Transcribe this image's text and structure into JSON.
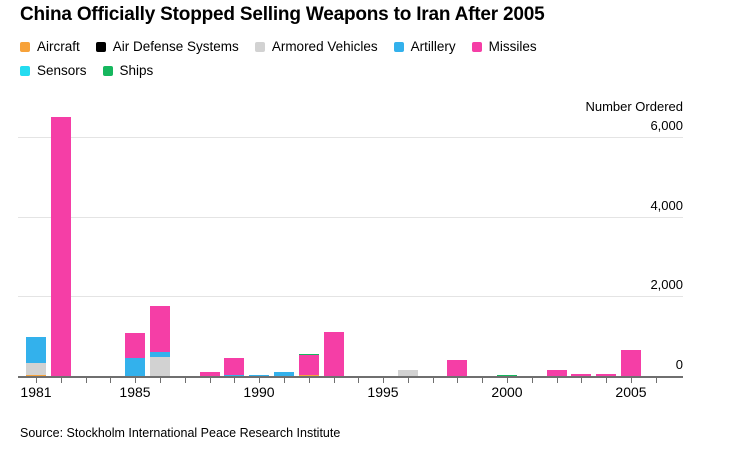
{
  "title": "China Officially Stopped Selling Weapons to Iran After 2005",
  "legend": {
    "items": [
      {
        "label": "Aircraft",
        "color": "#f7a23a"
      },
      {
        "label": "Air Defense Systems",
        "color": "#000000"
      },
      {
        "label": "Armored Vehicles",
        "color": "#d2d2d2"
      },
      {
        "label": "Artillery",
        "color": "#33b1ec"
      },
      {
        "label": "Missiles",
        "color": "#f53ea6"
      },
      {
        "label": "Sensors",
        "color": "#24dcf0"
      },
      {
        "label": "Ships",
        "color": "#16b75e"
      }
    ]
  },
  "y_axis": {
    "title": "Number Ordered",
    "ticks": [
      {
        "label": "6,000",
        "value": 6000
      },
      {
        "label": "4,000",
        "value": 4000
      },
      {
        "label": "2,000",
        "value": 2000
      },
      {
        "label": "0",
        "value": 0
      }
    ]
  },
  "x_axis": {
    "labeled_years": [
      "1981",
      "1985",
      "1990",
      "1995",
      "2000",
      "2005"
    ]
  },
  "source": "Source: Stockholm International Peace Research Institute",
  "chart_data": {
    "type": "bar",
    "stacked": true,
    "title": "China Officially Stopped Selling Weapons to Iran After 2005",
    "xlabel": "",
    "ylabel": "Number Ordered",
    "ylim": [
      0,
      6600
    ],
    "grid": "horizontal",
    "legend_position": "top",
    "categories": [
      1981,
      1982,
      1983,
      1984,
      1985,
      1986,
      1987,
      1988,
      1989,
      1990,
      1991,
      1992,
      1993,
      1994,
      1995,
      1996,
      1997,
      1998,
      1999,
      2000,
      2001,
      2002,
      2003,
      2004,
      2005,
      2006
    ],
    "series": [
      {
        "name": "Aircraft",
        "color": "#f7a23a",
        "values": [
          20,
          0,
          0,
          0,
          0,
          0,
          0,
          0,
          0,
          0,
          0,
          20,
          0,
          0,
          0,
          0,
          0,
          0,
          0,
          0,
          0,
          0,
          0,
          0,
          0,
          0
        ]
      },
      {
        "name": "Air Defense Systems",
        "color": "#000000",
        "values": [
          0,
          0,
          0,
          0,
          0,
          0,
          0,
          0,
          0,
          0,
          0,
          0,
          0,
          0,
          0,
          0,
          0,
          0,
          0,
          0,
          0,
          0,
          0,
          0,
          0,
          0
        ]
      },
      {
        "name": "Armored Vehicles",
        "color": "#d2d2d2",
        "values": [
          300,
          0,
          0,
          0,
          0,
          480,
          0,
          0,
          0,
          0,
          0,
          0,
          0,
          0,
          0,
          150,
          0,
          0,
          0,
          0,
          0,
          0,
          0,
          0,
          0,
          0
        ]
      },
      {
        "name": "Artillery",
        "color": "#33b1ec",
        "values": [
          650,
          0,
          0,
          0,
          440,
          130,
          0,
          0,
          30,
          30,
          110,
          0,
          0,
          0,
          0,
          0,
          0,
          0,
          0,
          0,
          0,
          0,
          0,
          0,
          0,
          0
        ]
      },
      {
        "name": "Missiles",
        "color": "#f53ea6",
        "values": [
          0,
          6500,
          0,
          0,
          640,
          1150,
          0,
          100,
          420,
          0,
          0,
          490,
          1100,
          0,
          0,
          0,
          0,
          390,
          0,
          0,
          0,
          160,
          60,
          40,
          650,
          0
        ]
      },
      {
        "name": "Sensors",
        "color": "#24dcf0",
        "values": [
          0,
          0,
          0,
          0,
          0,
          0,
          0,
          0,
          0,
          0,
          0,
          0,
          0,
          0,
          0,
          0,
          0,
          0,
          0,
          0,
          0,
          0,
          0,
          0,
          0,
          0
        ]
      },
      {
        "name": "Ships",
        "color": "#16b75e",
        "values": [
          0,
          0,
          0,
          0,
          0,
          0,
          0,
          0,
          0,
          0,
          0,
          20,
          0,
          0,
          0,
          0,
          0,
          0,
          0,
          30,
          0,
          0,
          0,
          0,
          0,
          0
        ]
      }
    ]
  }
}
